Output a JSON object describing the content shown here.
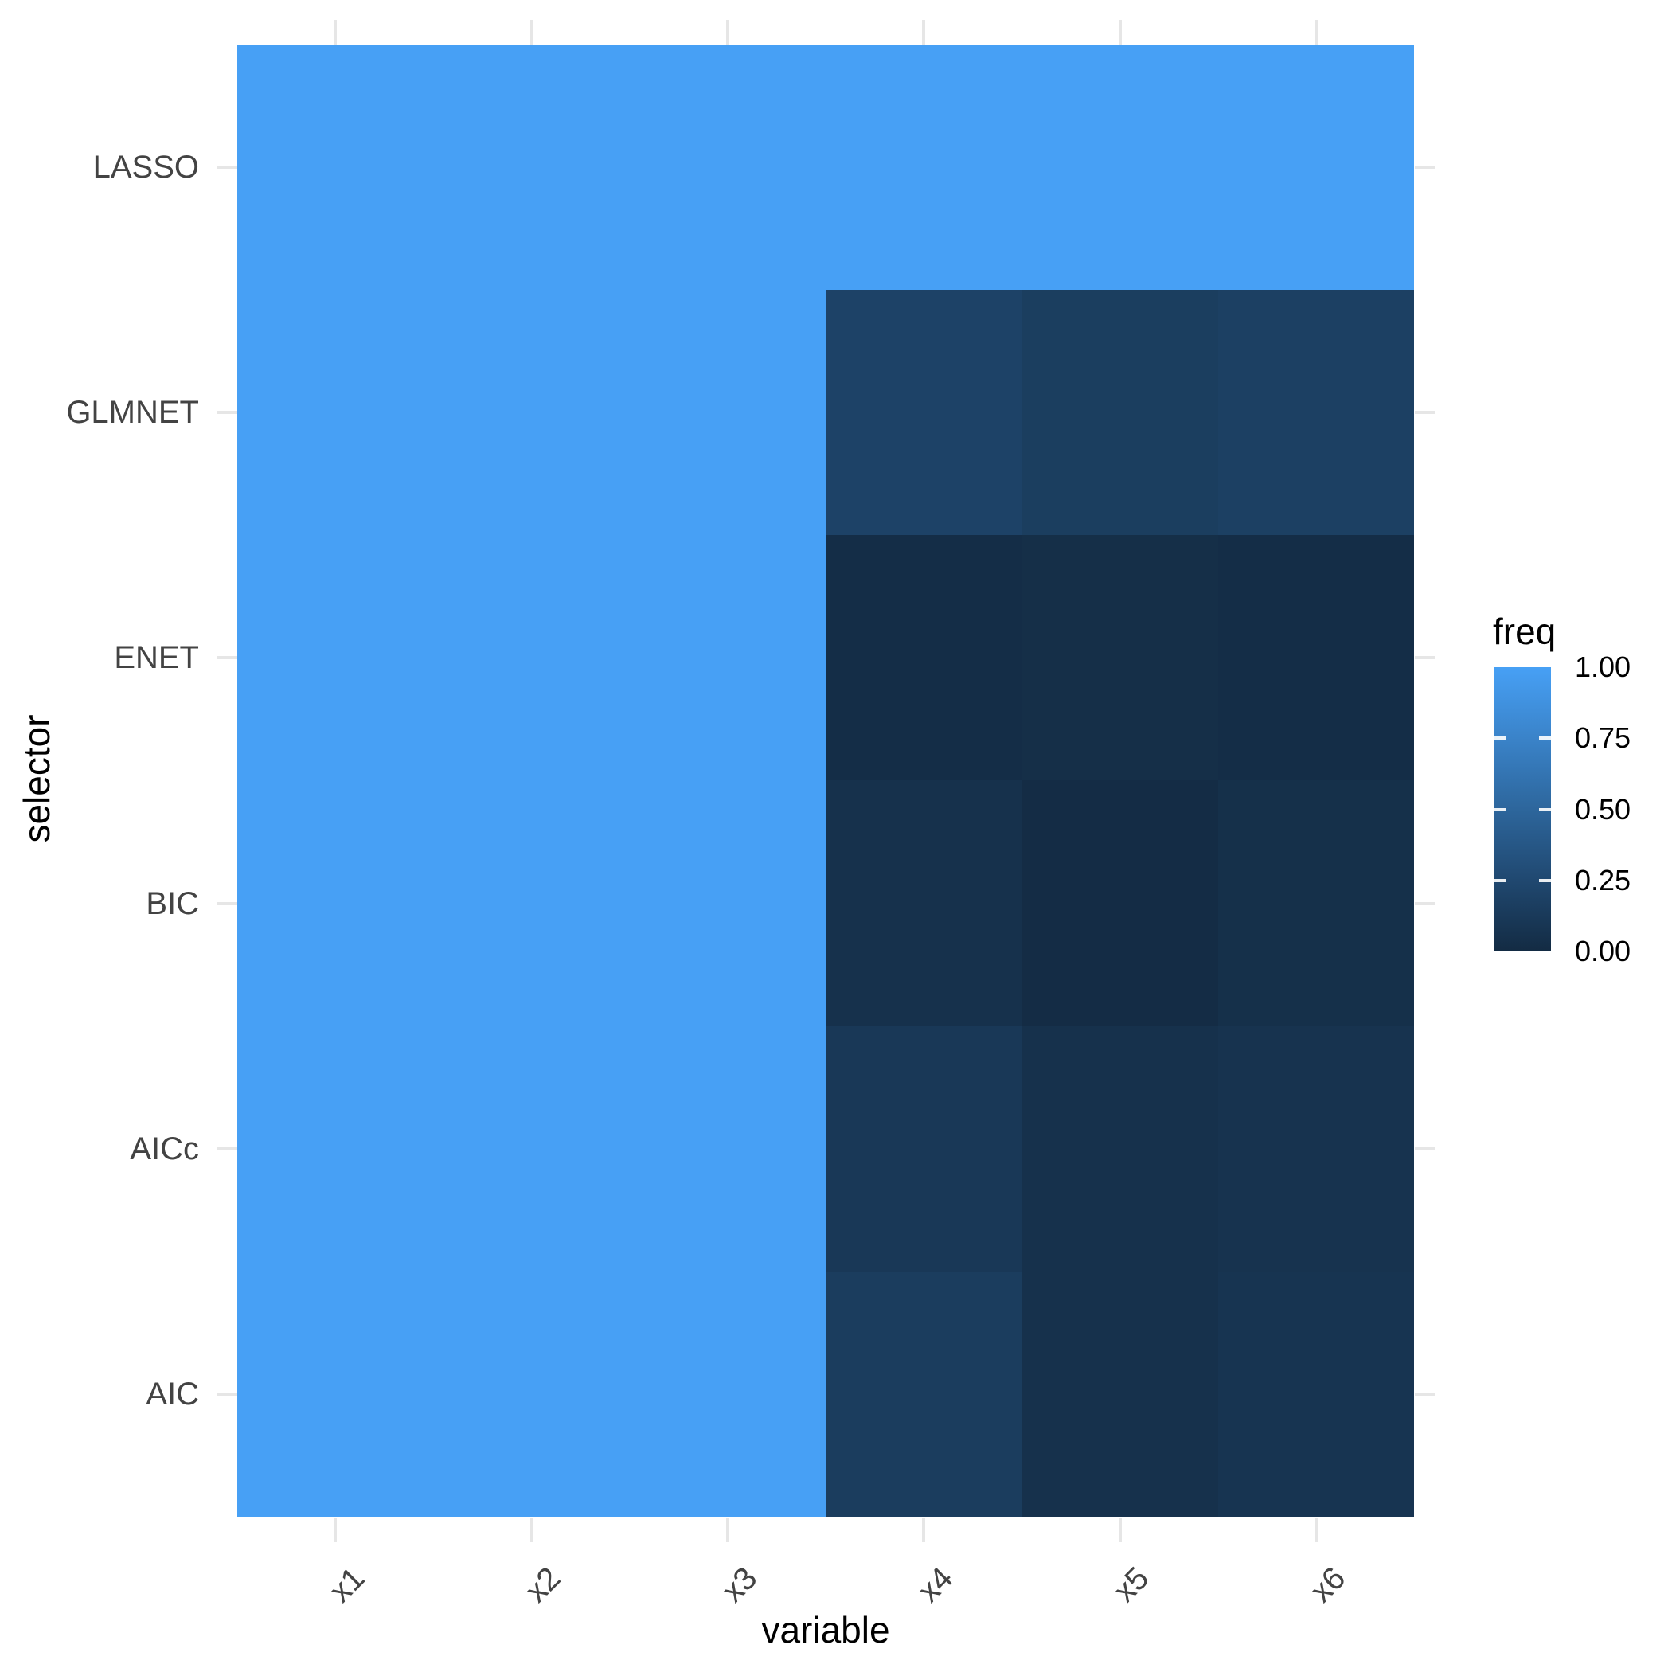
{
  "page": {
    "background": "#FFFFFF",
    "description": "Heatmap of selection frequency (freq) of variables x1-x6 by model selector"
  },
  "chart_data": {
    "type": "heatmap",
    "title": "",
    "xlabel": "variable",
    "ylabel": "selector",
    "x_categories": [
      "x1",
      "x2",
      "x3",
      "x4",
      "x5",
      "x6"
    ],
    "y_categories_top_to_bottom": [
      "LASSO",
      "GLMNET",
      "ENET",
      "BIC",
      "AICc",
      "AIC"
    ],
    "values_rows_top_to_bottom": [
      [
        1.0,
        1.0,
        1.0,
        1.0,
        1.0,
        1.0
      ],
      [
        1.0,
        1.0,
        1.0,
        0.2,
        0.16,
        0.18
      ],
      [
        1.0,
        1.0,
        1.0,
        0.02,
        0.03,
        0.02
      ],
      [
        1.0,
        1.0,
        1.0,
        0.05,
        0.01,
        0.04
      ],
      [
        1.0,
        1.0,
        1.0,
        0.11,
        0.05,
        0.07
      ],
      [
        1.0,
        1.0,
        1.0,
        0.15,
        0.05,
        0.08
      ]
    ],
    "cell_colors_rows_top_to_bottom": [
      [
        "#47A0F5",
        "#47A0F5",
        "#47A0F5",
        "#47A0F5",
        "#47A0F5",
        "#47A0F5"
      ],
      [
        "#47A0F5",
        "#47A0F5",
        "#47A0F5",
        "#1D4267",
        "#1B3E5F",
        "#1C4063"
      ],
      [
        "#47A0F5",
        "#47A0F5",
        "#47A0F5",
        "#142D47",
        "#152F48",
        "#142D47"
      ],
      [
        "#47A0F5",
        "#47A0F5",
        "#47A0F5",
        "#16314C",
        "#142C45",
        "#15304A"
      ],
      [
        "#47A0F5",
        "#47A0F5",
        "#47A0F5",
        "#193857",
        "#16314C",
        "#17334F"
      ],
      [
        "#47A0F5",
        "#47A0F5",
        "#47A0F5",
        "#1B3D5E",
        "#16314C",
        "#173451"
      ]
    ],
    "legend": {
      "title": "freq",
      "position": "right",
      "tick_labels_top_to_bottom": [
        "1.00",
        "0.75",
        "0.50",
        "0.25",
        "0.00"
      ],
      "limits": [
        0.0,
        1.0
      ],
      "low_color": "#132B43",
      "high_color": "#47A0F5",
      "gradient_stops_bottom_to_top": [
        "#132B43",
        "#204870",
        "#2D669C",
        "#3A83C9",
        "#47A0F5"
      ]
    },
    "style": {
      "panel_background": "#FFFFFF",
      "gridline_stub_color": "#E6E6E6",
      "axis_text_color": "#434343",
      "axis_title_color": "#000000",
      "x_tick_label_angle_degrees": 45
    }
  }
}
